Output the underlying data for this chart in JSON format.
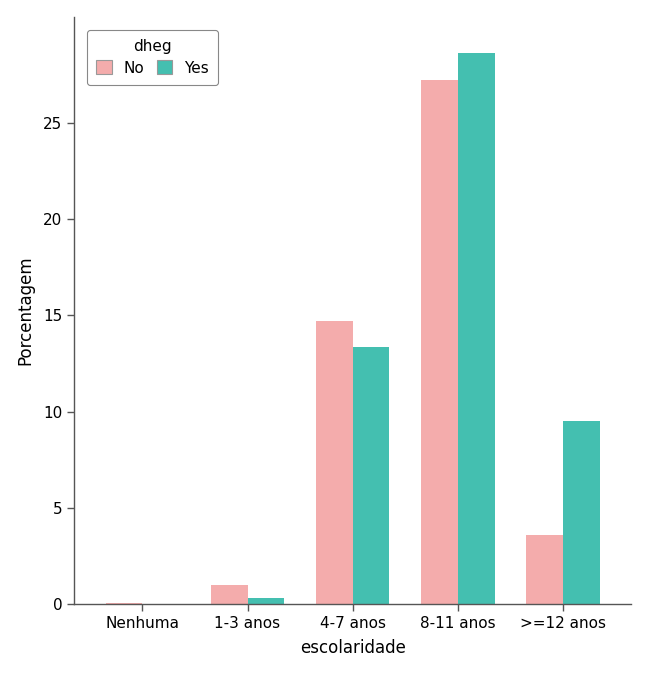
{
  "categories": [
    "Nenhuma",
    "1-3 anos",
    "4-7 anos",
    "8-11 anos",
    ">=12 anos"
  ],
  "no_values": [
    0.08,
    1.0,
    14.7,
    27.2,
    3.6
  ],
  "yes_values": [
    0.0,
    0.3,
    13.35,
    28.6,
    9.5
  ],
  "color_no": "#F4ACAC",
  "color_yes": "#44BFB0",
  "ylabel": "Porcentagem",
  "xlabel": "escolaridade",
  "legend_title": "dheg",
  "legend_no": "No",
  "legend_yes": "Yes",
  "ylim": [
    0,
    30.5
  ],
  "yticks": [
    0,
    5,
    10,
    15,
    20,
    25
  ],
  "bar_width": 0.35,
  "background_color": "#FFFFFF"
}
